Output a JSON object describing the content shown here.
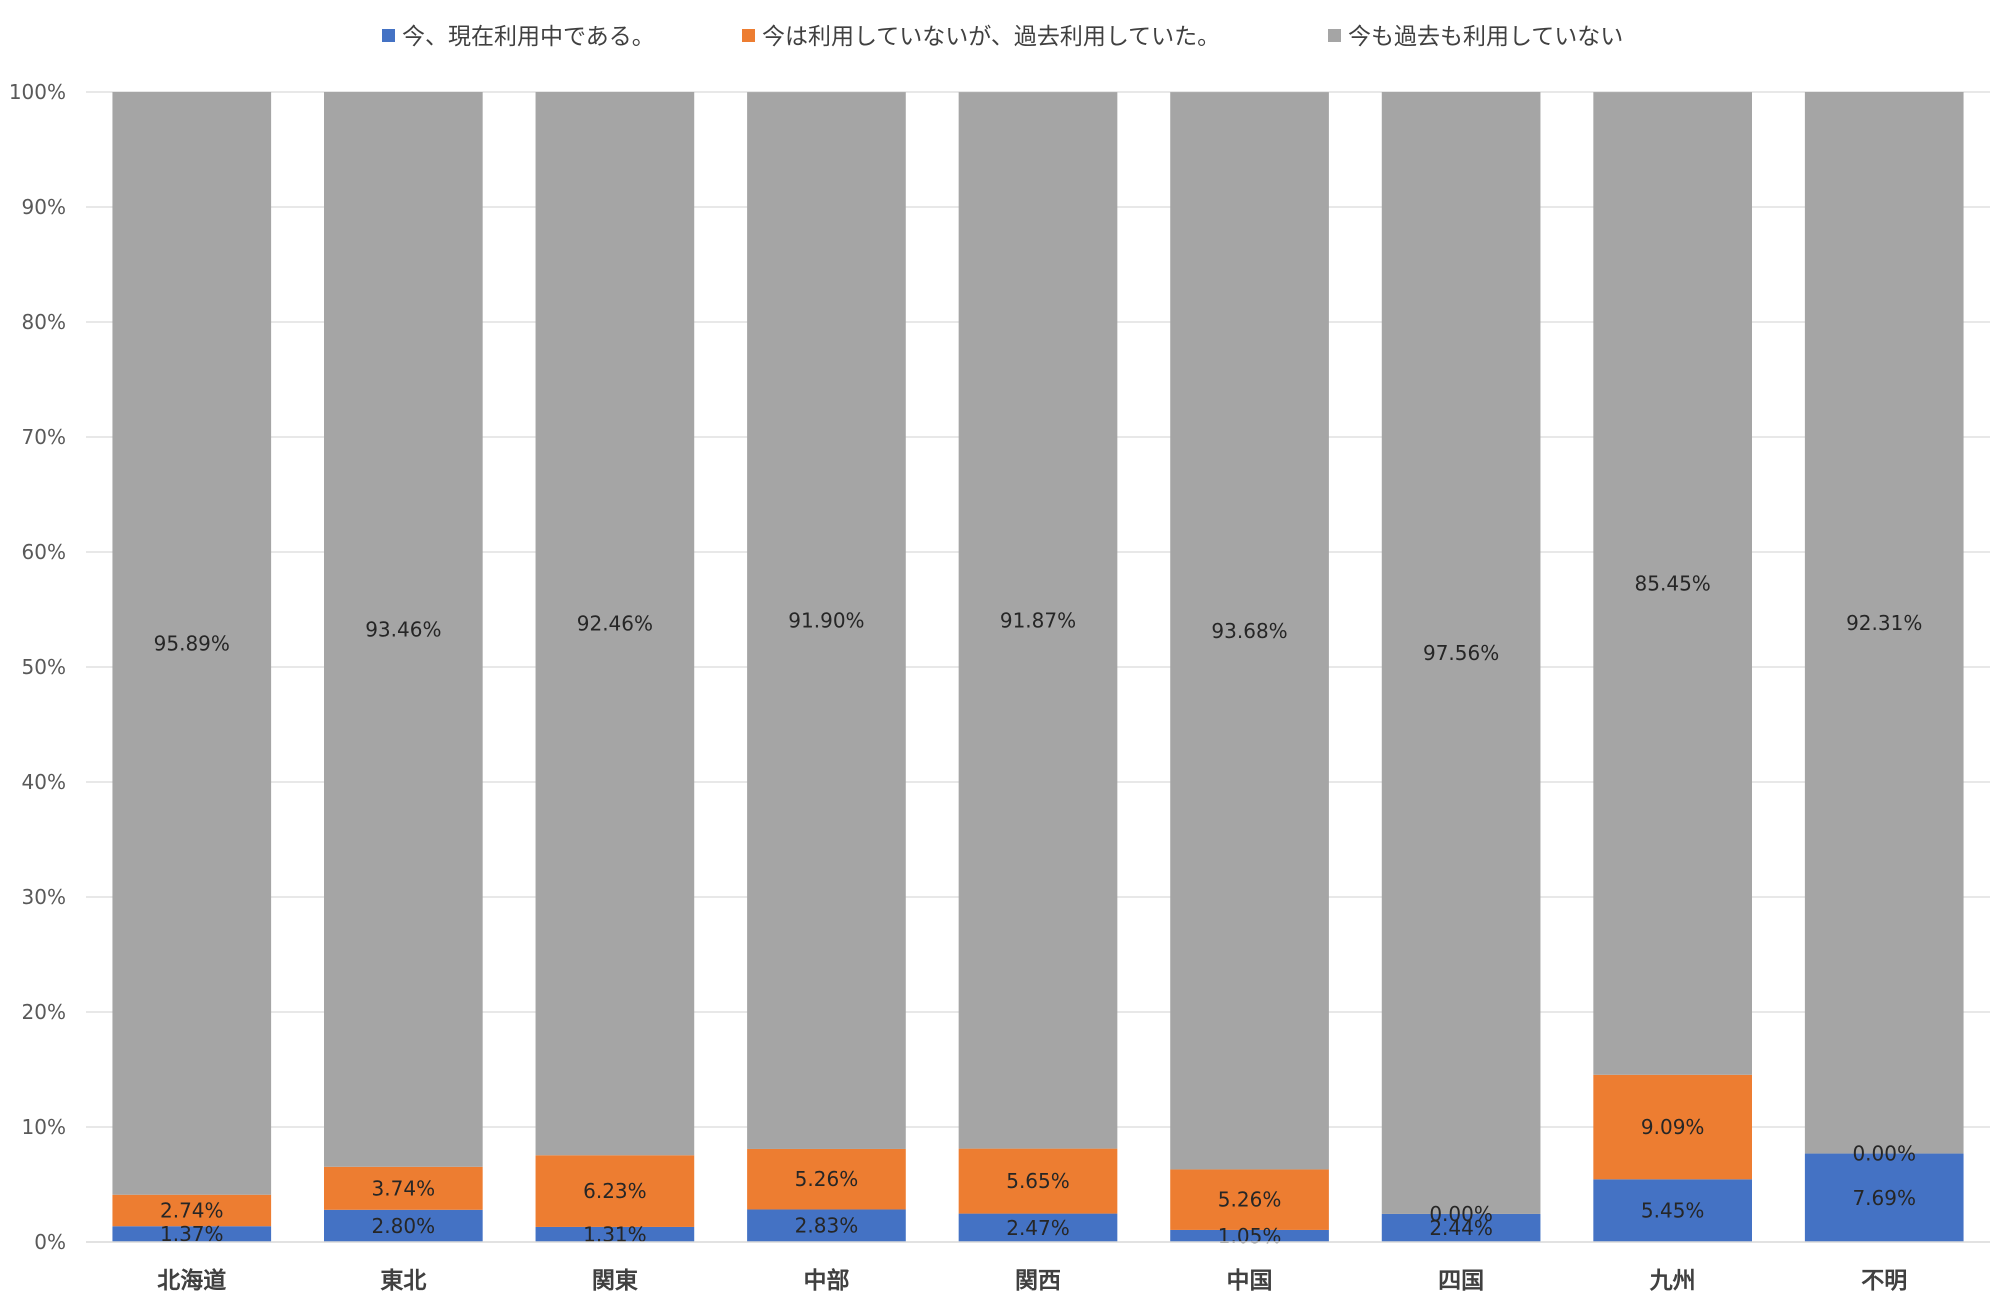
{
  "chart_data": {
    "type": "bar",
    "stacked": true,
    "categories": [
      "北海道",
      "東北",
      "関東",
      "中部",
      "関西",
      "中国",
      "四国",
      "九州",
      "不明"
    ],
    "series": [
      {
        "name": "今、現在利用中である。",
        "color": "#4472c4",
        "values": [
          1.37,
          2.8,
          1.31,
          2.83,
          2.47,
          1.05,
          2.44,
          5.45,
          7.69
        ],
        "labels": [
          "1.37%",
          "2.80%",
          "1.31%",
          "2.83%",
          "2.47%",
          "1.05%",
          "2.44%",
          "5.45%",
          "7.69%"
        ]
      },
      {
        "name": "今は利用していないが、過去利用していた。",
        "color": "#ed7d31",
        "values": [
          2.74,
          3.74,
          6.23,
          5.26,
          5.65,
          5.26,
          0.0,
          9.09,
          0.0
        ],
        "labels": [
          "2.74%",
          "3.74%",
          "6.23%",
          "5.26%",
          "5.65%",
          "5.26%",
          "0.00%",
          "9.09%",
          "0.00%"
        ]
      },
      {
        "name": "今も過去も利用していない",
        "color": "#a5a5a5",
        "values": [
          95.89,
          93.46,
          92.46,
          91.9,
          91.87,
          93.68,
          97.56,
          85.45,
          92.31
        ],
        "labels": [
          "95.89%",
          "93.46%",
          "92.46%",
          "91.90%",
          "91.87%",
          "93.68%",
          "97.56%",
          "85.45%",
          "92.31%"
        ]
      }
    ],
    "y_ticks": [
      "0%",
      "10%",
      "20%",
      "30%",
      "40%",
      "50%",
      "60%",
      "70%",
      "80%",
      "90%",
      "100%"
    ],
    "ylim": [
      0,
      100
    ],
    "grid": true,
    "legend_position": "top"
  }
}
